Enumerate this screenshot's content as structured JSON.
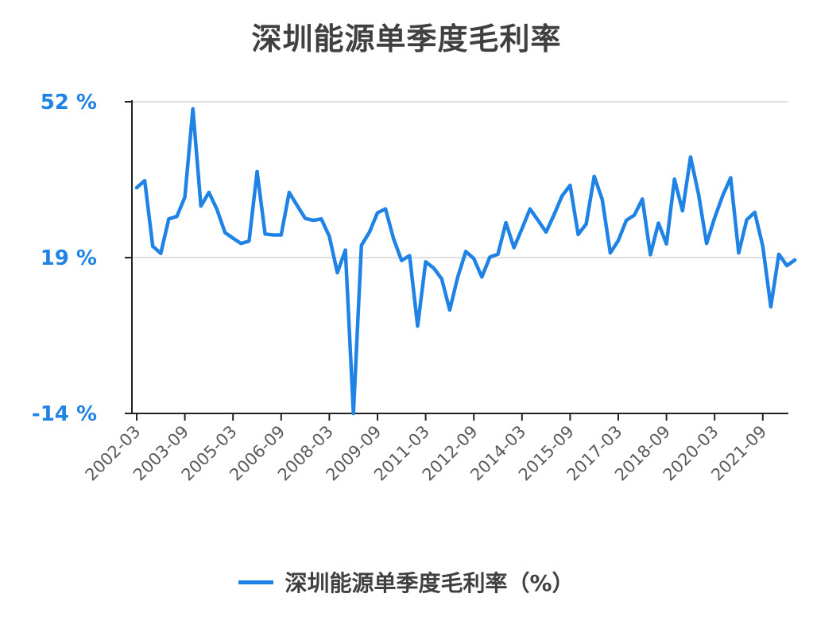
{
  "chart_data": {
    "type": "line",
    "title": "深圳能源单季度毛利率",
    "xlabel": "",
    "ylabel": "",
    "ylim": [
      -14,
      52
    ],
    "y_ticks": [
      "52 %",
      "19 %",
      "-14 %"
    ],
    "y_tick_values": [
      52,
      19,
      -14
    ],
    "x_tick_labels": [
      "2002-03",
      "2003-09",
      "2005-03",
      "2006-09",
      "2008-03",
      "2009-09",
      "2011-03",
      "2012-09",
      "2014-03",
      "2015-09",
      "2017-03",
      "2018-09",
      "2020-03",
      "2021-09"
    ],
    "grid": true,
    "legend_position": "bottom",
    "x": [
      "2002-03",
      "2002-06",
      "2002-09",
      "2002-12",
      "2003-03",
      "2003-06",
      "2003-09",
      "2003-12",
      "2004-03",
      "2004-06",
      "2004-09",
      "2004-12",
      "2005-03",
      "2005-06",
      "2005-09",
      "2005-12",
      "2006-03",
      "2006-06",
      "2006-09",
      "2006-12",
      "2007-03",
      "2007-06",
      "2007-09",
      "2007-12",
      "2008-03",
      "2008-06",
      "2008-09",
      "2008-12",
      "2009-03",
      "2009-06",
      "2009-09",
      "2009-12",
      "2010-03",
      "2010-06",
      "2010-09",
      "2010-12",
      "2011-03",
      "2011-06",
      "2011-09",
      "2011-12",
      "2012-03",
      "2012-06",
      "2012-09",
      "2012-12",
      "2013-03",
      "2013-06",
      "2013-09",
      "2013-12",
      "2014-03",
      "2014-06",
      "2014-09",
      "2014-12",
      "2015-03",
      "2015-06",
      "2015-09",
      "2015-12",
      "2016-03",
      "2016-06",
      "2016-09",
      "2016-12",
      "2017-03",
      "2017-06",
      "2017-09",
      "2017-12",
      "2018-03",
      "2018-06",
      "2018-09",
      "2018-12",
      "2019-03",
      "2019-06",
      "2019-09",
      "2019-12",
      "2020-03",
      "2020-06",
      "2020-09",
      "2020-12",
      "2021-03",
      "2021-06",
      "2021-09",
      "2021-12",
      "2022-03",
      "2022-06",
      "2022-09"
    ],
    "series": [
      {
        "name": "深圳能源单季度毛利率（%）",
        "color": "#1f83e5",
        "values": [
          33.8,
          35.3,
          21.4,
          19.9,
          27.2,
          27.7,
          31.8,
          50.5,
          29.9,
          32.8,
          29.2,
          24.3,
          23.1,
          22.0,
          22.5,
          37.2,
          24.0,
          23.8,
          23.8,
          32.8,
          30.0,
          27.3,
          26.9,
          27.2,
          23.5,
          15.8,
          20.6,
          -14.0,
          21.6,
          24.4,
          28.5,
          29.3,
          23.0,
          18.4,
          19.4,
          4.5,
          18.1,
          16.8,
          14.5,
          7.9,
          14.9,
          20.3,
          18.8,
          14.9,
          19.1,
          19.7,
          26.4,
          21.1,
          25.1,
          29.3,
          26.9,
          24.4,
          28.1,
          32.1,
          34.3,
          23.9,
          26.1,
          36.2,
          31.3,
          20.0,
          22.6,
          26.9,
          28.0,
          31.4,
          19.6,
          26.3,
          21.9,
          35.6,
          28.9,
          40.3,
          32.4,
          22.0,
          27.4,
          32.1,
          35.9,
          20.0,
          27.0,
          28.6,
          21.4,
          8.6,
          19.7,
          17.3,
          18.5
        ]
      }
    ]
  },
  "legend": {
    "label": "深圳能源单季度毛利率（%）"
  },
  "colors": {
    "line": "#1f83e5",
    "ytick": "#1f83e5",
    "xtick": "#5a5a5a",
    "title": "#404040",
    "grid": "#e0e0e0",
    "axis": "#222222"
  }
}
